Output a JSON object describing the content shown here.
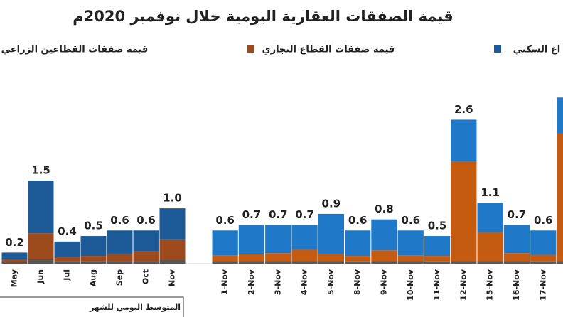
{
  "chart_data": [
    {
      "type": "bar",
      "stacked": true,
      "title": "قيمة الصفقات العقارية اليومية خلال نوفمبر 2020م",
      "note": "المتوسط اليومي للشهر",
      "categories": [
        "May",
        "Jun",
        "Jul",
        "Aug",
        "Sep",
        "Oct",
        "Nov"
      ],
      "series": [
        {
          "name": "اع السكني",
          "color": "#1d5a98",
          "values": [
            0.12,
            0.95,
            0.28,
            0.36,
            0.42,
            0.38,
            0.56
          ]
        },
        {
          "name": "قيمة صفقات القطاع التجاري",
          "color": "#9d4a1c",
          "values": [
            0.05,
            0.47,
            0.08,
            0.1,
            0.13,
            0.17,
            0.37
          ]
        },
        {
          "name": "قيمة صفقات القطاعين الزراعي",
          "color": "#555555",
          "values": [
            0.03,
            0.08,
            0.04,
            0.04,
            0.05,
            0.05,
            0.07
          ]
        }
      ],
      "totals": [
        0.2,
        1.5,
        0.4,
        0.5,
        0.6,
        0.6,
        1.0
      ],
      "total_labels": [
        "0.2",
        "1.5",
        "0.4",
        "0.5",
        "0.6",
        "0.6",
        "1.0"
      ],
      "ylim": [
        0,
        3.35
      ]
    },
    {
      "type": "bar",
      "stacked": true,
      "categories": [
        "1-Nov",
        "2-Nov",
        "3-Nov",
        "4-Nov",
        "5-Nov",
        "8-Nov",
        "9-Nov",
        "10-Nov",
        "11-Nov",
        "12-Nov",
        "15-Nov",
        "16-Nov",
        "17-Nov",
        null
      ],
      "series": [
        {
          "color": "#1f78c8",
          "values": [
            0.45,
            0.53,
            0.51,
            0.44,
            0.72,
            0.46,
            0.56,
            0.45,
            0.36,
            0.75,
            0.53,
            0.51,
            0.44,
            0.65
          ]
        },
        {
          "color": "#c55a11",
          "values": [
            0.1,
            0.12,
            0.14,
            0.21,
            0.13,
            0.1,
            0.19,
            0.1,
            0.1,
            1.8,
            0.52,
            0.14,
            0.12,
            2.3
          ]
        },
        {
          "color": "#595959",
          "values": [
            0.05,
            0.05,
            0.05,
            0.05,
            0.05,
            0.04,
            0.05,
            0.05,
            0.04,
            0.05,
            0.05,
            0.05,
            0.04,
            0.05
          ]
        }
      ],
      "totals": [
        0.6,
        0.7,
        0.7,
        0.7,
        0.9,
        0.6,
        0.8,
        0.6,
        0.5,
        2.6,
        1.1,
        0.7,
        0.6,
        3.0
      ],
      "total_labels": [
        "0.6",
        "0.7",
        "0.7",
        "0.7",
        "0.9",
        "0.6",
        "0.8",
        "0.6",
        "0.5",
        "2.6",
        "1.1",
        "0.7",
        "0.6",
        null
      ],
      "ylim": [
        0,
        3.35
      ]
    }
  ]
}
